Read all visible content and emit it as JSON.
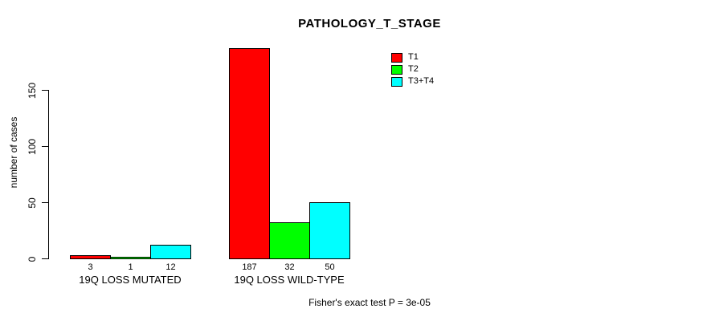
{
  "chart_data": {
    "type": "bar",
    "title": "PATHOLOGY_T_STAGE",
    "ylabel": "number of cases",
    "xlabel": "",
    "yticks": [
      0,
      50,
      100,
      150
    ],
    "ylim": [
      0,
      150
    ],
    "grid": false,
    "legend_position": "top-right",
    "categories": [
      "19Q LOSS MUTATED",
      "19Q LOSS WILD-TYPE"
    ],
    "series": [
      {
        "name": "T1",
        "color": "#ff0000",
        "values": [
          3,
          187
        ]
      },
      {
        "name": "T2",
        "color": "#00ff00",
        "values": [
          1,
          32
        ]
      },
      {
        "name": "T3+T4",
        "color": "#00ffff",
        "values": [
          12,
          50
        ]
      }
    ],
    "bar_value_labels": [
      [
        "3",
        "1",
        "12"
      ],
      [
        "187",
        "32",
        "50"
      ]
    ],
    "annotation": "Fisher's exact test P = 3e-05"
  }
}
